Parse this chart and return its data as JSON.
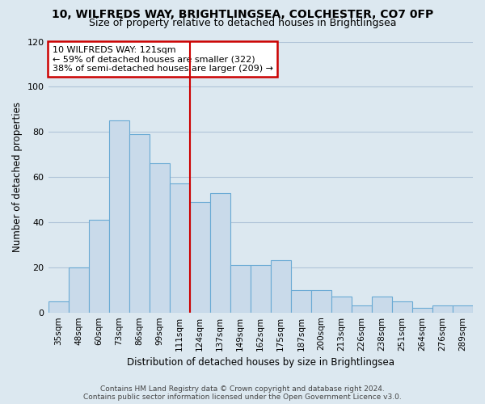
{
  "title1": "10, WILFREDS WAY, BRIGHTLINGSEA, COLCHESTER, CO7 0FP",
  "title2": "Size of property relative to detached houses in Brightlingsea",
  "xlabel": "Distribution of detached houses by size in Brightlingsea",
  "ylabel": "Number of detached properties",
  "footer1": "Contains HM Land Registry data © Crown copyright and database right 2024.",
  "footer2": "Contains public sector information licensed under the Open Government Licence v3.0.",
  "bar_labels": [
    "35sqm",
    "48sqm",
    "60sqm",
    "73sqm",
    "86sqm",
    "99sqm",
    "111sqm",
    "124sqm",
    "137sqm",
    "149sqm",
    "162sqm",
    "175sqm",
    "187sqm",
    "200sqm",
    "213sqm",
    "226sqm",
    "238sqm",
    "251sqm",
    "264sqm",
    "276sqm",
    "289sqm"
  ],
  "bar_values": [
    5,
    20,
    41,
    85,
    79,
    66,
    57,
    49,
    53,
    21,
    21,
    23,
    10,
    10,
    7,
    3,
    7,
    5,
    2,
    3,
    3
  ],
  "bar_color": "#c9daea",
  "bar_edge_color": "#6aaad4",
  "vline_color": "#cc0000",
  "annotation_title": "10 WILFREDS WAY: 121sqm",
  "annotation_line1": "← 59% of detached houses are smaller (322)",
  "annotation_line2": "38% of semi-detached houses are larger (209) →",
  "annotation_box_color": "#cc0000",
  "ylim": [
    0,
    120
  ],
  "yticks": [
    0,
    20,
    40,
    60,
    80,
    100,
    120
  ],
  "bg_color": "#dce8f0",
  "plot_bg_color": "#dce8f0",
  "grid_color": "#b0c4d8",
  "title1_fontsize": 10,
  "title2_fontsize": 9
}
